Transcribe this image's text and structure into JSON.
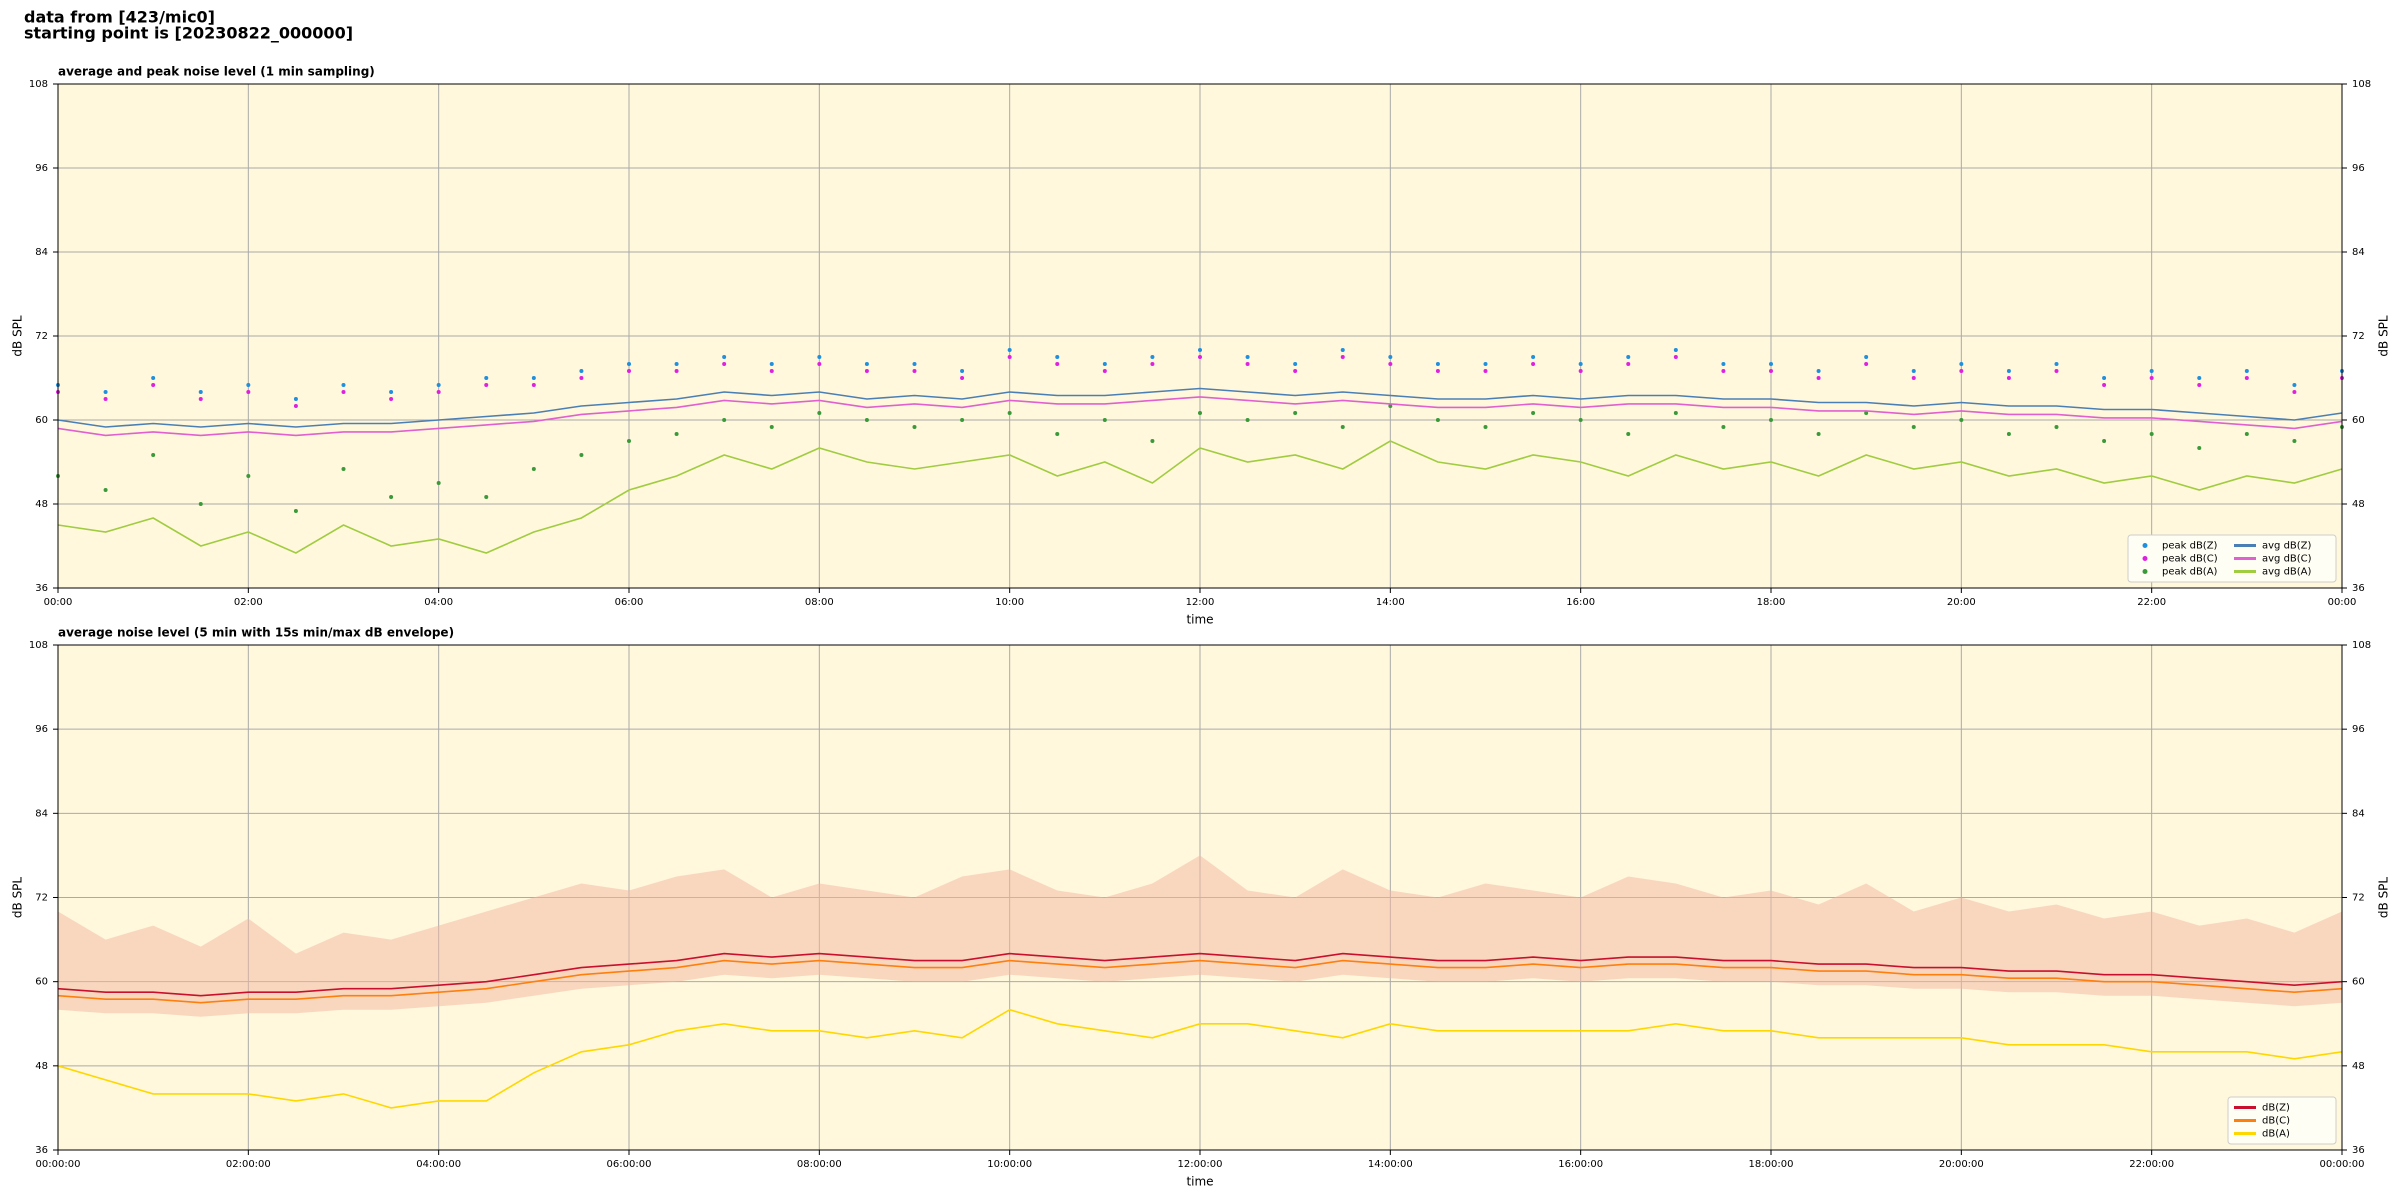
{
  "header": {
    "line1": "data from [423/mic0]",
    "line2": "starting point is [20230822_000000]"
  },
  "chart_data": [
    {
      "type": "line",
      "title": "average and peak noise level (1 min sampling)",
      "xlabel": "time",
      "ylabel": "dB SPL",
      "background": "#fff8dc",
      "grid": true,
      "legend": "lower right",
      "legend_columns": 2,
      "x": [
        0,
        0.5,
        1,
        1.5,
        2,
        2.5,
        3,
        3.5,
        4,
        4.5,
        5,
        5.5,
        6,
        6.5,
        7,
        7.5,
        8,
        8.5,
        9,
        9.5,
        10,
        10.5,
        11,
        11.5,
        12,
        12.5,
        13,
        13.5,
        14,
        14.5,
        15,
        15.5,
        16,
        16.5,
        17,
        17.5,
        18,
        18.5,
        19,
        19.5,
        20,
        20.5,
        21,
        21.5,
        22,
        22.5,
        23,
        23.5,
        24
      ],
      "xlim": [
        0,
        24
      ],
      "xticks": [
        {
          "value": 0,
          "label": "00:00"
        },
        {
          "value": 2,
          "label": "02:00"
        },
        {
          "value": 4,
          "label": "04:00"
        },
        {
          "value": 6,
          "label": "06:00"
        },
        {
          "value": 8,
          "label": "08:00"
        },
        {
          "value": 10,
          "label": "10:00"
        },
        {
          "value": 12,
          "label": "12:00"
        },
        {
          "value": 14,
          "label": "14:00"
        },
        {
          "value": 16,
          "label": "16:00"
        },
        {
          "value": 18,
          "label": "18:00"
        },
        {
          "value": 20,
          "label": "20:00"
        },
        {
          "value": 22,
          "label": "22:00"
        },
        {
          "value": 24,
          "label": "00:00"
        }
      ],
      "ylim": [
        36,
        108
      ],
      "yticks": [
        36,
        48,
        60,
        72,
        84,
        96,
        108
      ],
      "series": [
        {
          "name": "peak dB(Z)",
          "type": "scatter",
          "color": "#1f8fdf",
          "values": [
            65,
            64,
            66,
            64,
            65,
            63,
            65,
            64,
            65,
            66,
            66,
            67,
            68,
            68,
            69,
            68,
            69,
            68,
            68,
            67,
            70,
            69,
            68,
            69,
            70,
            69,
            68,
            70,
            69,
            68,
            68,
            69,
            68,
            69,
            70,
            68,
            68,
            67,
            69,
            67,
            68,
            67,
            68,
            66,
            67,
            66,
            67,
            65,
            67
          ]
        },
        {
          "name": "peak dB(C)",
          "type": "scatter",
          "color": "#e020e0",
          "values": [
            64,
            63,
            65,
            63,
            64,
            62,
            64,
            63,
            64,
            65,
            65,
            66,
            67,
            67,
            68,
            67,
            68,
            67,
            67,
            66,
            69,
            68,
            67,
            68,
            69,
            68,
            67,
            69,
            68,
            67,
            67,
            68,
            67,
            68,
            69,
            67,
            67,
            66,
            68,
            66,
            67,
            66,
            67,
            65,
            66,
            65,
            66,
            64,
            66
          ]
        },
        {
          "name": "peak dB(A)",
          "type": "scatter",
          "color": "#3a9a3a",
          "values": [
            52,
            50,
            55,
            48,
            52,
            47,
            53,
            49,
            51,
            49,
            53,
            55,
            57,
            58,
            60,
            59,
            61,
            60,
            59,
            60,
            61,
            58,
            60,
            57,
            61,
            60,
            61,
            59,
            62,
            60,
            59,
            61,
            60,
            58,
            61,
            59,
            60,
            58,
            61,
            59,
            60,
            58,
            59,
            57,
            58,
            56,
            58,
            57,
            59
          ]
        },
        {
          "name": "avg dB(Z)",
          "type": "line",
          "color": "#4a7fb5",
          "values": [
            60,
            59,
            59.5,
            59,
            59.5,
            59,
            59.5,
            59.5,
            60,
            60.5,
            61,
            62,
            62.5,
            63,
            64,
            63.5,
            64,
            63,
            63.5,
            63,
            64,
            63.5,
            63.5,
            64,
            64.5,
            64,
            63.5,
            64,
            63.5,
            63,
            63,
            63.5,
            63,
            63.5,
            63.5,
            63,
            63,
            62.5,
            62.5,
            62,
            62.5,
            62,
            62,
            61.5,
            61.5,
            61,
            60.5,
            60,
            61
          ]
        },
        {
          "name": "avg dB(C)",
          "type": "line",
          "color": "#e060d0",
          "values": [
            58.8,
            57.8,
            58.3,
            57.8,
            58.3,
            57.8,
            58.3,
            58.3,
            58.8,
            59.3,
            59.8,
            60.8,
            61.3,
            61.8,
            62.8,
            62.3,
            62.8,
            61.8,
            62.3,
            61.8,
            62.8,
            62.3,
            62.3,
            62.8,
            63.3,
            62.8,
            62.3,
            62.8,
            62.3,
            61.8,
            61.8,
            62.3,
            61.8,
            62.3,
            62.3,
            61.8,
            61.8,
            61.3,
            61.3,
            60.8,
            61.3,
            60.8,
            60.8,
            60.3,
            60.3,
            59.8,
            59.3,
            58.8,
            59.8
          ]
        },
        {
          "name": "avg dB(A)",
          "type": "line",
          "color": "#a0cc40",
          "values": [
            45,
            44,
            46,
            42,
            44,
            41,
            45,
            42,
            43,
            41,
            44,
            46,
            50,
            52,
            55,
            53,
            56,
            54,
            53,
            54,
            55,
            52,
            54,
            51,
            56,
            54,
            55,
            53,
            57,
            54,
            53,
            55,
            54,
            52,
            55,
            53,
            54,
            52,
            55,
            53,
            54,
            52,
            53,
            51,
            52,
            50,
            52,
            51,
            53
          ]
        }
      ]
    },
    {
      "type": "line",
      "title": "average noise level (5 min with 15s min/max dB envelope)",
      "xlabel": "time",
      "ylabel": "dB SPL",
      "background": "#fff8dc",
      "grid": true,
      "legend": "lower right",
      "legend_columns": 1,
      "x": [
        0,
        0.5,
        1,
        1.5,
        2,
        2.5,
        3,
        3.5,
        4,
        4.5,
        5,
        5.5,
        6,
        6.5,
        7,
        7.5,
        8,
        8.5,
        9,
        9.5,
        10,
        10.5,
        11,
        11.5,
        12,
        12.5,
        13,
        13.5,
        14,
        14.5,
        15,
        15.5,
        16,
        16.5,
        17,
        17.5,
        18,
        18.5,
        19,
        19.5,
        20,
        20.5,
        21,
        21.5,
        22,
        22.5,
        23,
        23.5,
        24
      ],
      "xlim": [
        0,
        24
      ],
      "xticks": [
        {
          "value": 0,
          "label": "00:00:00"
        },
        {
          "value": 2,
          "label": "02:00:00"
        },
        {
          "value": 4,
          "label": "04:00:00"
        },
        {
          "value": 6,
          "label": "06:00:00"
        },
        {
          "value": 8,
          "label": "08:00:00"
        },
        {
          "value": 10,
          "label": "10:00:00"
        },
        {
          "value": 12,
          "label": "12:00:00"
        },
        {
          "value": 14,
          "label": "14:00:00"
        },
        {
          "value": 16,
          "label": "16:00:00"
        },
        {
          "value": 18,
          "label": "18:00:00"
        },
        {
          "value": 20,
          "label": "20:00:00"
        },
        {
          "value": 22,
          "label": "22:00:00"
        },
        {
          "value": 24,
          "label": "00:00:00"
        }
      ],
      "ylim": [
        36,
        108
      ],
      "yticks": [
        36,
        48,
        60,
        72,
        84,
        96,
        108
      ],
      "band": {
        "color": "#f4b6a0",
        "low": [
          56,
          55.5,
          55.5,
          55,
          55.5,
          55.5,
          56,
          56,
          56.5,
          57,
          58,
          59,
          59.5,
          60,
          61,
          60.5,
          61,
          60.5,
          60,
          60,
          61,
          60.5,
          60,
          60.5,
          61,
          60.5,
          60,
          61,
          60.5,
          60,
          60,
          60.5,
          60,
          60.5,
          60.5,
          60,
          60,
          59.5,
          59.5,
          59,
          59,
          58.5,
          58.5,
          58,
          58,
          57.5,
          57,
          56.5,
          57
        ],
        "high": [
          70,
          66,
          68,
          65,
          69,
          64,
          67,
          66,
          68,
          70,
          72,
          74,
          73,
          75,
          76,
          72,
          74,
          73,
          72,
          75,
          76,
          73,
          72,
          74,
          78,
          73,
          72,
          76,
          73,
          72,
          74,
          73,
          72,
          75,
          74,
          72,
          73,
          71,
          74,
          70,
          72,
          70,
          71,
          69,
          70,
          68,
          69,
          67,
          70
        ]
      },
      "series": [
        {
          "name": "dB(Z)",
          "type": "line",
          "color": "#c8102e",
          "values": [
            59,
            58.5,
            58.5,
            58,
            58.5,
            58.5,
            59,
            59,
            59.5,
            60,
            61,
            62,
            62.5,
            63,
            64,
            63.5,
            64,
            63.5,
            63,
            63,
            64,
            63.5,
            63,
            63.5,
            64,
            63.5,
            63,
            64,
            63.5,
            63,
            63,
            63.5,
            63,
            63.5,
            63.5,
            63,
            63,
            62.5,
            62.5,
            62,
            62,
            61.5,
            61.5,
            61,
            61,
            60.5,
            60,
            59.5,
            60
          ]
        },
        {
          "name": "dB(C)",
          "type": "line",
          "color": "#ff7f0e",
          "values": [
            58,
            57.5,
            57.5,
            57,
            57.5,
            57.5,
            58,
            58,
            58.5,
            59,
            60,
            61,
            61.5,
            62,
            63,
            62.5,
            63,
            62.5,
            62,
            62,
            63,
            62.5,
            62,
            62.5,
            63,
            62.5,
            62,
            63,
            62.5,
            62,
            62,
            62.5,
            62,
            62.5,
            62.5,
            62,
            62,
            61.5,
            61.5,
            61,
            61,
            60.5,
            60.5,
            60,
            60,
            59.5,
            59,
            58.5,
            59
          ]
        },
        {
          "name": "dB(A)",
          "type": "line",
          "color": "#ffd700",
          "values": [
            48,
            46,
            44,
            44,
            44,
            43,
            44,
            42,
            43,
            43,
            47,
            50,
            51,
            53,
            54,
            53,
            53,
            52,
            53,
            52,
            56,
            54,
            53,
            52,
            54,
            54,
            53,
            52,
            54,
            53,
            53,
            53,
            53,
            53,
            54,
            53,
            53,
            52,
            52,
            52,
            52,
            51,
            51,
            51,
            50,
            50,
            50,
            49,
            50
          ]
        }
      ]
    }
  ]
}
